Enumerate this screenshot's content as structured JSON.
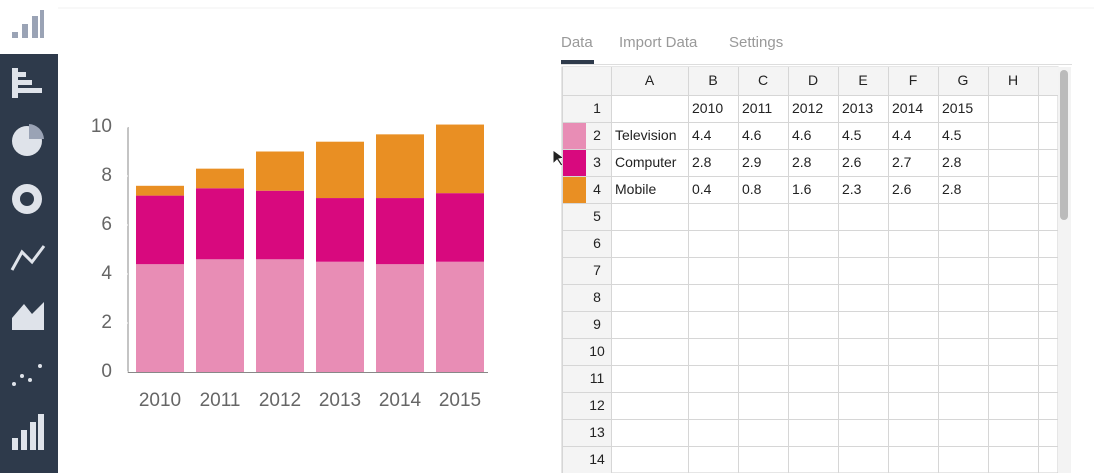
{
  "chart_data": {
    "type": "stacked_bar",
    "categories": [
      "2010",
      "2011",
      "2012",
      "2013",
      "2014",
      "2015"
    ],
    "series": [
      {
        "name": "Television",
        "color": "#e88db5",
        "values": [
          4.4,
          4.6,
          4.6,
          4.5,
          4.4,
          4.5
        ]
      },
      {
        "name": "Computer",
        "color": "#d8097e",
        "values": [
          2.8,
          2.9,
          2.8,
          2.6,
          2.7,
          2.8
        ]
      },
      {
        "name": "Mobile",
        "color": "#e98f23",
        "values": [
          0.4,
          0.8,
          1.6,
          2.3,
          2.6,
          2.8
        ]
      }
    ],
    "ylim": [
      0,
      10
    ],
    "yticks": [
      0,
      2,
      4,
      6,
      8,
      10
    ]
  },
  "tabs": [
    "Data",
    "Import Data",
    "Settings"
  ],
  "table": {
    "columns": [
      "A",
      "B",
      "C",
      "D",
      "E",
      "F",
      "G",
      "H"
    ],
    "row_numbers": [
      1,
      2,
      3,
      4,
      5,
      6,
      7,
      8,
      9,
      10,
      11,
      12,
      13,
      14
    ]
  }
}
